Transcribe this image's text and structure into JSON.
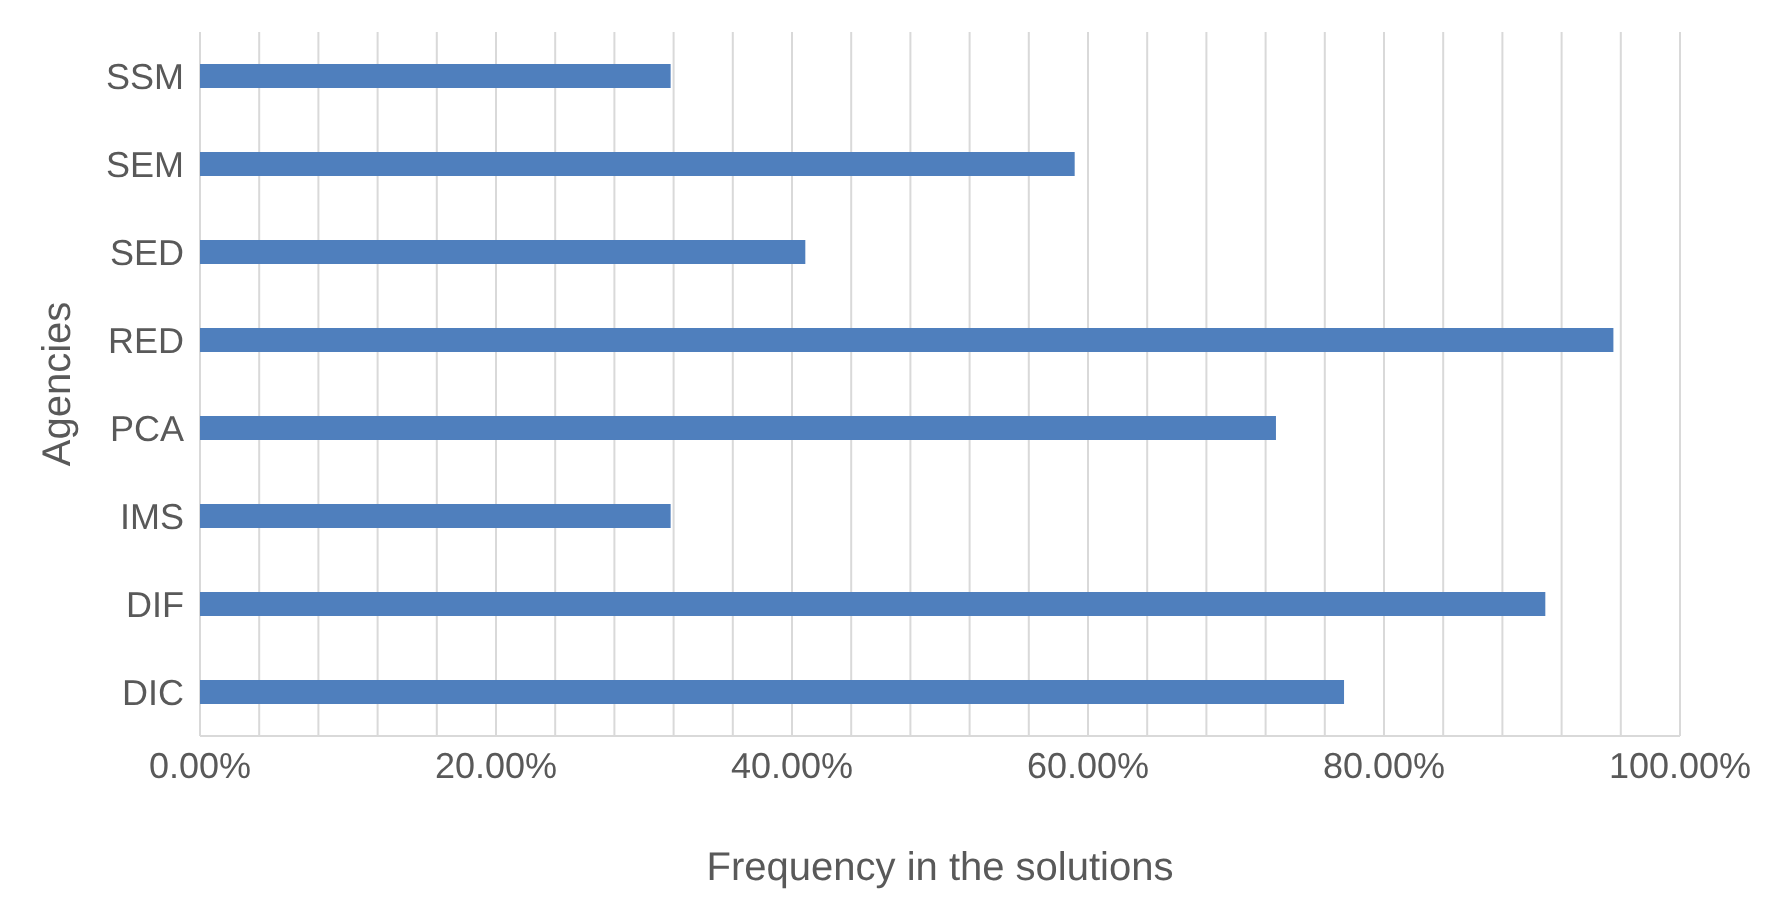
{
  "chart_data": {
    "type": "bar",
    "orientation": "horizontal",
    "xlabel": "Frequency in the solutions",
    "ylabel": "Agencies",
    "categories": [
      "SSM",
      "SEM",
      "SED",
      "RED",
      "PCA",
      "IMS",
      "DIF",
      "DIC"
    ],
    "values": [
      31.8,
      59.1,
      40.9,
      95.5,
      72.7,
      31.8,
      90.9,
      77.3
    ],
    "color": "#4f7fbd",
    "xlim": [
      0,
      100
    ],
    "xticks": [
      {
        "value": 0,
        "label": "0.00%"
      },
      {
        "value": 4,
        "label": null
      },
      {
        "value": 8,
        "label": null
      },
      {
        "value": 12,
        "label": null
      },
      {
        "value": 16,
        "label": null
      },
      {
        "value": 20,
        "label": "20.00%"
      },
      {
        "value": 24,
        "label": null
      },
      {
        "value": 28,
        "label": null
      },
      {
        "value": 32,
        "label": null
      },
      {
        "value": 36,
        "label": null
      },
      {
        "value": 40,
        "label": "40.00%"
      },
      {
        "value": 44,
        "label": null
      },
      {
        "value": 48,
        "label": null
      },
      {
        "value": 52,
        "label": null
      },
      {
        "value": 56,
        "label": null
      },
      {
        "value": 60,
        "label": "60.00%"
      },
      {
        "value": 64,
        "label": null
      },
      {
        "value": 68,
        "label": null
      },
      {
        "value": 72,
        "label": null
      },
      {
        "value": 76,
        "label": null
      },
      {
        "value": 80,
        "label": "80.00%"
      },
      {
        "value": 84,
        "label": null
      },
      {
        "value": 88,
        "label": null
      },
      {
        "value": 92,
        "label": null
      },
      {
        "value": 96,
        "label": null
      },
      {
        "value": 100,
        "label": "100.00%"
      }
    ],
    "grid": "x"
  }
}
